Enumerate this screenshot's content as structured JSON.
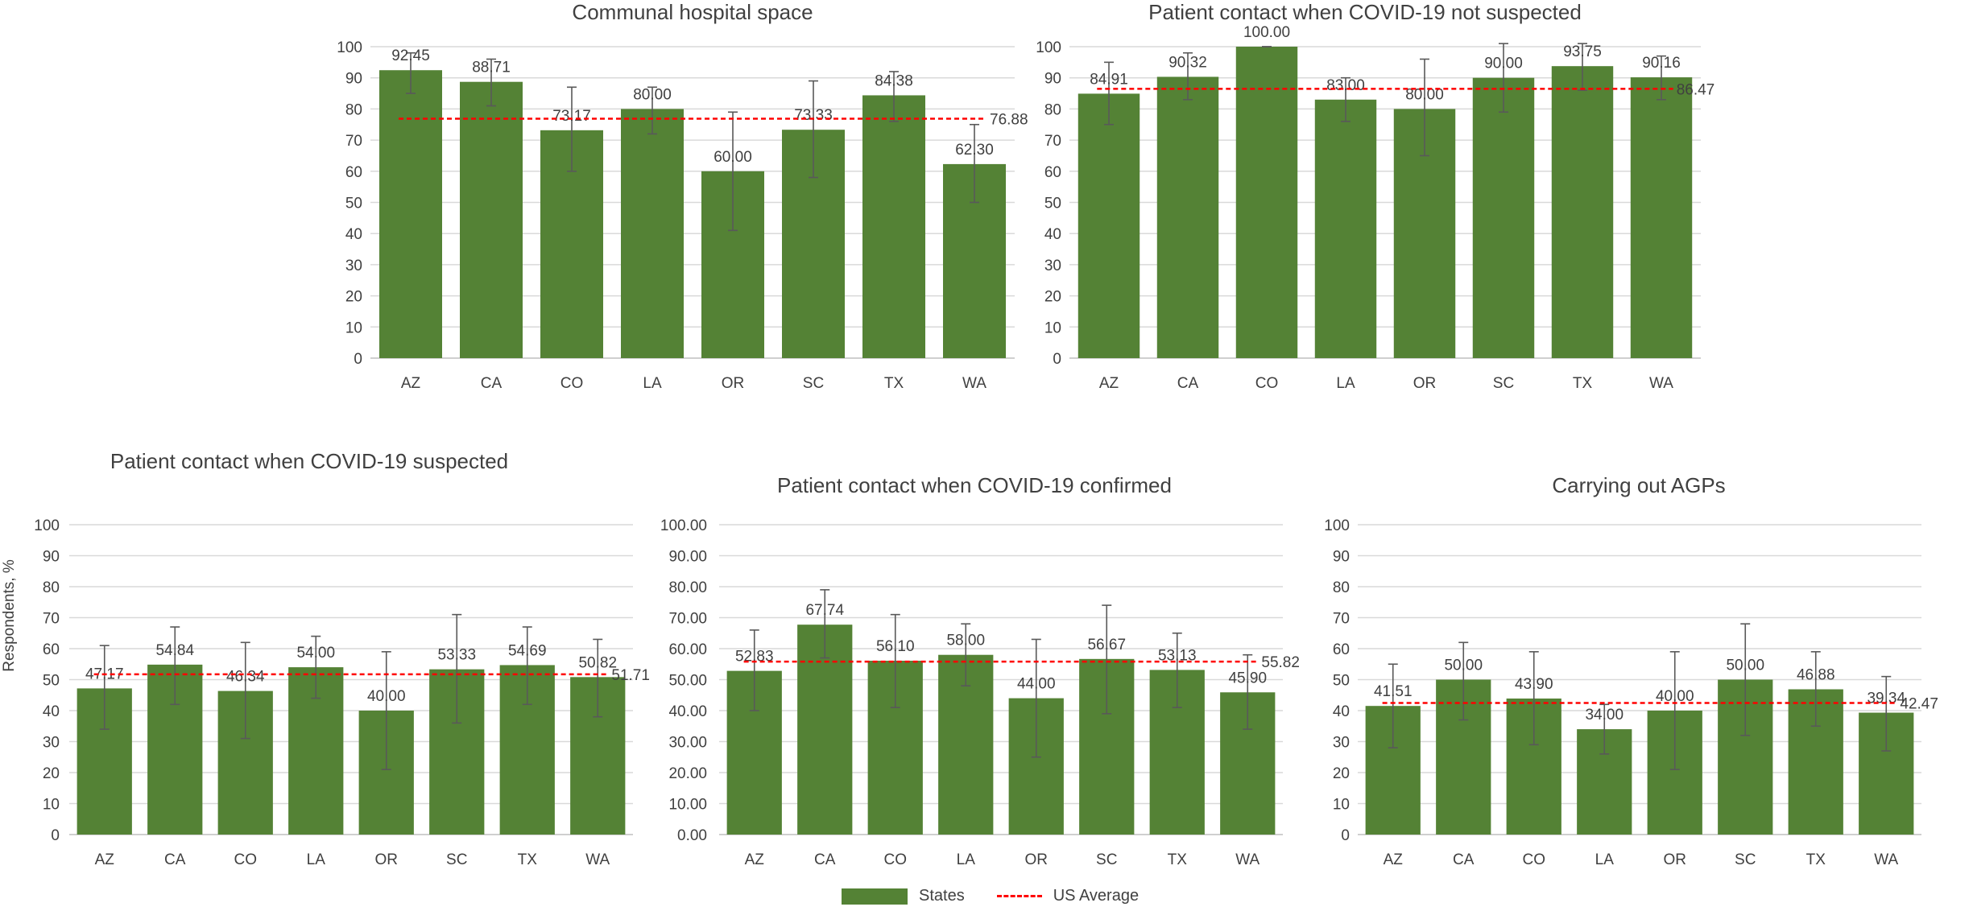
{
  "chart_data": [
    {
      "type": "bar",
      "title": "Communal hospital space",
      "categories": [
        "AZ",
        "CA",
        "CO",
        "LA",
        "OR",
        "SC",
        "TX",
        "WA"
      ],
      "values": [
        92.45,
        88.71,
        73.17,
        80.0,
        60.0,
        73.33,
        84.38,
        62.3
      ],
      "value_labels": [
        "92.45",
        "88.71",
        "73.17",
        "80.00",
        "60.00",
        "73.33",
        "84.38",
        "62.30"
      ],
      "error_low": [
        85,
        81,
        60,
        72,
        41,
        58,
        76,
        50
      ],
      "error_high": [
        98,
        96,
        87,
        87,
        79,
        89,
        92,
        75
      ],
      "average": 76.88,
      "average_label": "76.88",
      "ylim": [
        0,
        100
      ],
      "yticks": [
        "0",
        "10",
        "20",
        "30",
        "40",
        "50",
        "60",
        "70",
        "80",
        "90",
        "100"
      ],
      "xlabel": "",
      "ylabel": "",
      "grid": true
    },
    {
      "type": "bar",
      "title": "Patient contact when COVID-19 not suspected",
      "categories": [
        "AZ",
        "CA",
        "CO",
        "LA",
        "OR",
        "SC",
        "TX",
        "WA"
      ],
      "values": [
        84.91,
        90.32,
        100.0,
        83.0,
        80.0,
        90.0,
        93.75,
        90.16
      ],
      "value_labels": [
        "84.91",
        "90.32",
        "100.00",
        "83.00",
        "80.00",
        "90.00",
        "93.75",
        "90.16"
      ],
      "error_low": [
        75,
        83,
        100,
        76,
        65,
        79,
        86,
        83
      ],
      "error_high": [
        95,
        98,
        100,
        90,
        96,
        101,
        101,
        97
      ],
      "average": 86.47,
      "average_label": "86.47",
      "ylim": [
        0,
        100
      ],
      "yticks": [
        "0",
        "10",
        "20",
        "30",
        "40",
        "50",
        "60",
        "70",
        "80",
        "90",
        "100"
      ],
      "xlabel": "",
      "ylabel": "",
      "grid": true
    },
    {
      "type": "bar",
      "title": "Patient contact when COVID-19 suspected",
      "categories": [
        "AZ",
        "CA",
        "CO",
        "LA",
        "OR",
        "SC",
        "TX",
        "WA"
      ],
      "values": [
        47.17,
        54.84,
        46.34,
        54.0,
        40.0,
        53.33,
        54.69,
        50.82
      ],
      "value_labels": [
        "47.17",
        "54.84",
        "46.34",
        "54.00",
        "40.00",
        "53.33",
        "54.69",
        "50.82"
      ],
      "error_low": [
        34,
        42,
        31,
        44,
        21,
        36,
        42,
        38
      ],
      "error_high": [
        61,
        67,
        62,
        64,
        59,
        71,
        67,
        63
      ],
      "average": 51.71,
      "average_label": "51.71",
      "ylim": [
        0,
        100
      ],
      "yticks": [
        "0",
        "10",
        "20",
        "30",
        "40",
        "50",
        "60",
        "70",
        "80",
        "90",
        "100"
      ],
      "xlabel": "",
      "ylabel": "Respondents, %",
      "grid": true
    },
    {
      "type": "bar",
      "title": "Patient contact when COVID-19 confirmed",
      "categories": [
        "AZ",
        "CA",
        "CO",
        "LA",
        "OR",
        "SC",
        "TX",
        "WA"
      ],
      "values": [
        52.83,
        67.74,
        56.1,
        58.0,
        44.0,
        56.67,
        53.13,
        45.9
      ],
      "value_labels": [
        "52.83",
        "67.74",
        "56.10",
        "58.00",
        "44.00",
        "56.67",
        "53.13",
        "45.90"
      ],
      "error_low": [
        40,
        57,
        41,
        48,
        25,
        39,
        41,
        34
      ],
      "error_high": [
        66,
        79,
        71,
        68,
        63,
        74,
        65,
        58
      ],
      "average": 55.82,
      "average_label": "55.82",
      "ylim": [
        0,
        100
      ],
      "yticks": [
        "0.00",
        "10.00",
        "20.00",
        "30.00",
        "40.00",
        "50.00",
        "60.00",
        "70.00",
        "80.00",
        "90.00",
        "100.00"
      ],
      "xlabel": "",
      "ylabel": "",
      "grid": true
    },
    {
      "type": "bar",
      "title": "Carrying out AGPs",
      "categories": [
        "AZ",
        "CA",
        "CO",
        "LA",
        "OR",
        "SC",
        "TX",
        "WA"
      ],
      "values": [
        41.51,
        50.0,
        43.9,
        34.0,
        40.0,
        50.0,
        46.88,
        39.34
      ],
      "value_labels": [
        "41.51",
        "50.00",
        "43.90",
        "34.00",
        "40.00",
        "50.00",
        "46.88",
        "39.34"
      ],
      "error_low": [
        28,
        37,
        29,
        26,
        21,
        32,
        35,
        27
      ],
      "error_high": [
        55,
        62,
        59,
        42,
        59,
        68,
        59,
        51
      ],
      "average": 42.47,
      "average_label": "42.47",
      "ylim": [
        0,
        100
      ],
      "yticks": [
        "0",
        "10",
        "20",
        "30",
        "40",
        "50",
        "60",
        "70",
        "80",
        "90",
        "100"
      ],
      "xlabel": "",
      "ylabel": "",
      "grid": true
    }
  ],
  "legend": {
    "states_label": "States",
    "average_label": "US Average"
  },
  "colors": {
    "bar": "#548235",
    "average_line": "#ff0000",
    "grid": "#d9d9d9",
    "error_bar": "#595959",
    "text": "#404040"
  }
}
